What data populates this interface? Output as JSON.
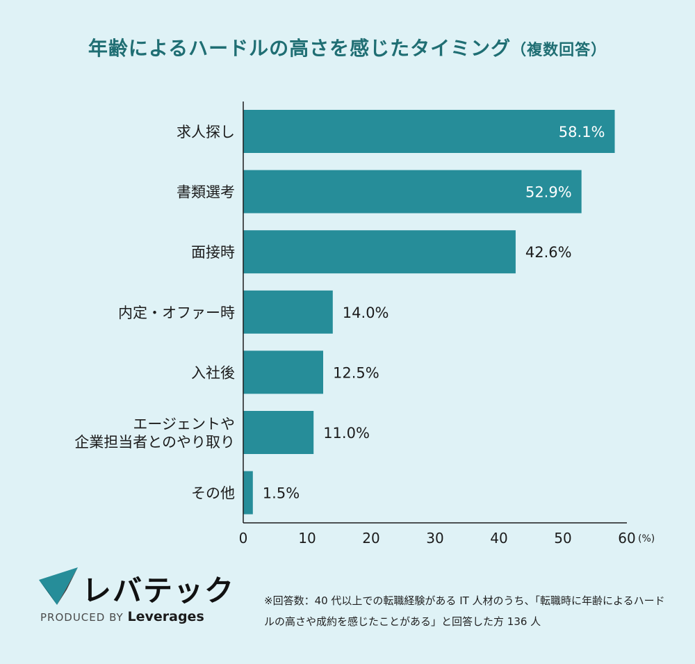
{
  "title": {
    "main": "年齢によるハードルの高さを感じたタイミング",
    "sub": "（複数回答）"
  },
  "chart_data": {
    "type": "bar",
    "orientation": "horizontal",
    "categories": [
      [
        "求人探し"
      ],
      [
        "書類選考"
      ],
      [
        "面接時"
      ],
      [
        "内定・オファー時"
      ],
      [
        "入社後"
      ],
      [
        "エージェントや",
        "企業担当者とのやり取り"
      ],
      [
        "その他"
      ]
    ],
    "values": [
      58.1,
      52.9,
      42.6,
      14.0,
      12.5,
      11.0,
      1.5
    ],
    "value_labels": [
      "58.1%",
      "52.9%",
      "42.6%",
      "14.0%",
      "12.5%",
      "11.0%",
      "1.5%"
    ],
    "xlim": [
      0,
      60
    ],
    "xticks": [
      "0",
      "10",
      "20",
      "30",
      "40",
      "50",
      "60"
    ],
    "x_unit": "(%)",
    "grid": false,
    "bar_color": "#268d99"
  },
  "brand": {
    "name": "レバテック",
    "produced_by": "PRODUCED BY",
    "company": "Leverages"
  },
  "footnote": "※回答数：40 代以上での転職経験がある IT 人材のうち、「転職時に年齢によるハードルの高さや成約を感じたことがある」と回答した方 136 人"
}
